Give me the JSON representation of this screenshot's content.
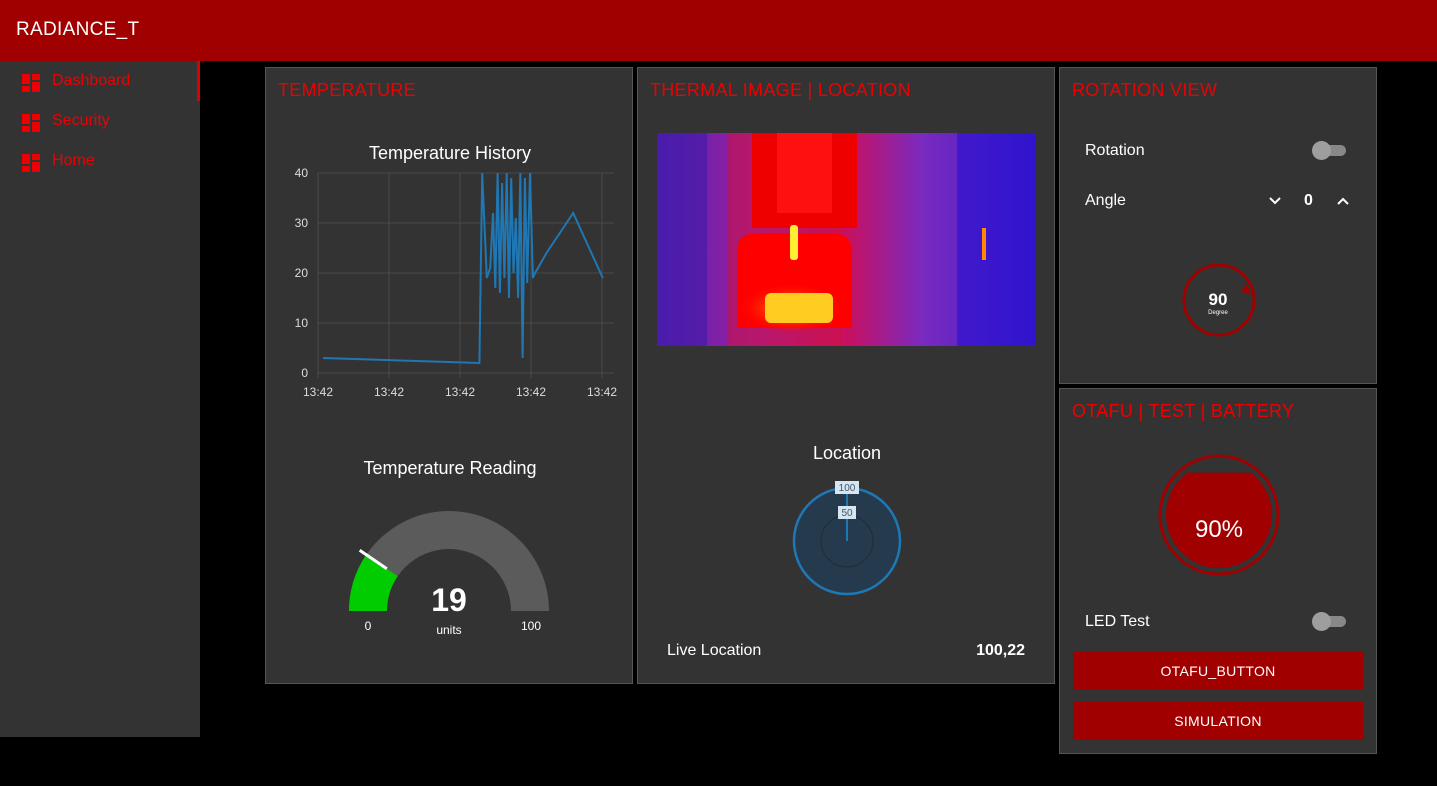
{
  "app": {
    "title": "RADIANCE_T"
  },
  "sidebar": {
    "items": [
      {
        "label": "Dashboard",
        "active": true
      },
      {
        "label": "Security",
        "active": false
      },
      {
        "label": "Home",
        "active": false
      }
    ]
  },
  "temperature_card": {
    "title": "TEMPERATURE",
    "history_title": "Temperature History",
    "reading_title": "Temperature Reading"
  },
  "chart_data": [
    {
      "type": "line",
      "title": "Temperature History",
      "xlabel": "",
      "ylabel": "",
      "ylim": [
        0,
        40
      ],
      "yticks": [
        0,
        10,
        20,
        30,
        40
      ],
      "xtick_labels": [
        "13:42",
        "13:42",
        "13:42",
        "13:42",
        "13:42"
      ],
      "grid": true,
      "x": [
        0,
        27.5,
        28.0,
        28.8,
        29.4,
        29.9,
        30.3,
        30.7,
        31.1,
        31.5,
        31.9,
        32.3,
        32.7,
        33.1,
        33.5,
        33.9,
        34.3,
        34.7,
        35.1,
        35.5,
        35.9,
        36.4,
        36.9,
        37.3,
        37.8,
        38.3,
        39.3,
        44.0,
        49.2
      ],
      "values": [
        3,
        2,
        40,
        19,
        21,
        32,
        17,
        40,
        16,
        38,
        19,
        40,
        15,
        39,
        20,
        31,
        15,
        40,
        3,
        39,
        18,
        40,
        19,
        20,
        21,
        22,
        24,
        32,
        19
      ],
      "color": "#1f77b4"
    },
    {
      "type": "gauge",
      "title": "Temperature Reading",
      "value": 19,
      "min": 0,
      "max": 100,
      "units": "units",
      "fill_color": "#00cc00",
      "track_color": "#5b5b5b"
    },
    {
      "type": "polar",
      "title": "Location",
      "ring_labels": [
        "100",
        "50"
      ],
      "color": "#1f77b4"
    }
  ],
  "thermal_card": {
    "title": "THERMAL IMAGE | LOCATION",
    "location_title": "Location",
    "live_location_label": "Live Location",
    "live_location_value": "100,22"
  },
  "rotation_card": {
    "title": "ROTATION VIEW",
    "rotation_label": "Rotation",
    "rotation_on": false,
    "angle_label": "Angle",
    "angle_value": "0",
    "dial_value": "90",
    "dial_unit": "Degree",
    "dial_color": "#a10000"
  },
  "otafu_card": {
    "title": "OTAFU | TEST | BATTERY",
    "battery_level": 0.9,
    "battery_text": "90%",
    "led_test_label": "LED Test",
    "led_test_on": false,
    "otafu_button_label": "OTAFU_BUTTON",
    "simulation_button_label": "SIMULATION"
  },
  "colors": {
    "accent": "#a10000",
    "title_red": "#e00000",
    "card_bg": "#333333",
    "page_bg": "#000000"
  }
}
